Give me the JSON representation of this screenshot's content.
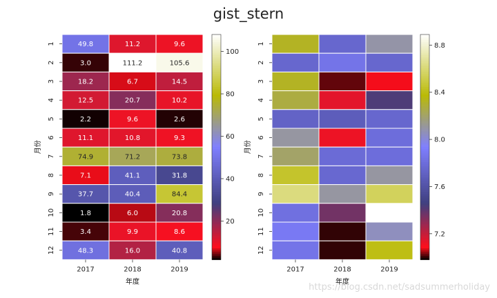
{
  "figure_title": "gist_stern",
  "watermark": "https://blog.csdn.net/sadsummerholiday",
  "chart_data": [
    {
      "type": "heatmap",
      "colormap": "gist_stern",
      "annotated": true,
      "xlabel": "年度",
      "ylabel": "月份",
      "x_categories": [
        "2017",
        "2018",
        "2019"
      ],
      "y_categories": [
        "1",
        "2",
        "3",
        "4",
        "5",
        "6",
        "7",
        "8",
        "9",
        "10",
        "11",
        "12"
      ],
      "values": [
        [
          49.8,
          11.2,
          9.6
        ],
        [
          3.0,
          111.2,
          105.6
        ],
        [
          18.2,
          6.7,
          14.5
        ],
        [
          12.5,
          20.7,
          10.2
        ],
        [
          2.2,
          9.6,
          2.6
        ],
        [
          11.1,
          10.8,
          9.3
        ],
        [
          74.9,
          71.2,
          73.8
        ],
        [
          7.1,
          41.1,
          31.8
        ],
        [
          37.7,
          40.4,
          84.4
        ],
        [
          1.8,
          6.0,
          20.8
        ],
        [
          3.4,
          9.9,
          8.6
        ],
        [
          48.3,
          16.0,
          40.8
        ]
      ],
      "vmin": 1.8,
      "vmax": 108,
      "colorbar_ticks": [
        "20",
        "40",
        "60",
        "80",
        "100"
      ],
      "colorbar_tick_values": [
        20,
        40,
        60,
        80,
        100
      ]
    },
    {
      "type": "heatmap",
      "colormap": "gist_stern",
      "annotated": false,
      "xlabel": "年度",
      "ylabel": "月份",
      "x_categories": [
        "2017",
        "2018",
        "2019"
      ],
      "y_categories": [
        "1",
        "2",
        "3",
        "4",
        "5",
        "6",
        "7",
        "8",
        "9",
        "10",
        "11",
        "12"
      ],
      "values": [
        [
          8.32,
          7.75,
          8.09
        ],
        [
          7.75,
          7.85,
          7.75
        ],
        [
          8.32,
          7.02,
          7.08
        ],
        [
          8.27,
          7.14,
          7.43
        ],
        [
          7.72,
          7.68,
          7.75
        ],
        [
          8.1,
          7.12,
          7.8
        ],
        [
          8.2,
          7.78,
          7.8
        ],
        [
          8.45,
          7.76,
          8.1
        ],
        [
          8.62,
          8.1,
          8.55
        ],
        [
          7.82,
          7.36,
          null
        ],
        [
          7.89,
          7.0,
          8.05
        ],
        [
          7.85,
          7.0,
          8.4
        ]
      ],
      "vmin": 6.98,
      "vmax": 8.89,
      "colorbar_ticks": [
        "7.2",
        "7.6",
        "8.0",
        "8.4",
        "8.8"
      ],
      "colorbar_tick_values": [
        7.2,
        7.6,
        8.0,
        8.4,
        8.8
      ]
    }
  ]
}
